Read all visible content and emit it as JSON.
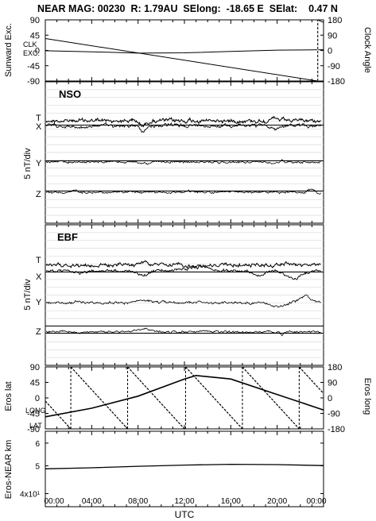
{
  "title": "NEAR MAG: 00230  R: 1.79AU  SElong:  -18.65 E  SElat:    0.47 N",
  "xaxis": {
    "label": "UTC",
    "ticks": [
      "00:00",
      "04:00",
      "08:00",
      "12:00",
      "16:00",
      "20:00",
      "00:00"
    ],
    "range_hours": [
      0,
      24
    ]
  },
  "chart_data": [
    {
      "type": "line",
      "id": "orientation",
      "ylabel_left": "Sunward Exc.",
      "ylabel_right": "Clock Angle",
      "left_ticks": [
        "90",
        "45",
        "0",
        "-45",
        "-90"
      ],
      "left_range": [
        -90,
        90
      ],
      "right_ticks": [
        "180",
        "90",
        "0",
        "-90",
        "-180"
      ],
      "right_range": [
        -180,
        180
      ],
      "annotations": [
        "CLK",
        "EXC."
      ],
      "series": [
        {
          "name": "CLK",
          "axis": "right",
          "x": [
            0,
            23.5,
            23.5,
            24
          ],
          "y": [
            70,
            -180,
            180,
            165
          ]
        },
        {
          "name": "EXC.",
          "axis": "left",
          "x": [
            0,
            4,
            8,
            12,
            16,
            20,
            24
          ],
          "y": [
            -1,
            -4,
            -8,
            -7,
            -3,
            1,
            2
          ]
        }
      ],
      "grid": false
    },
    {
      "type": "line",
      "id": "nso",
      "label": "NSO",
      "ylabel": "5 nT/div",
      "component_labels": [
        "T",
        "X",
        "Y",
        "Z"
      ],
      "grid": true
    },
    {
      "type": "line",
      "id": "ebf",
      "label": "EBF",
      "ylabel": "5 nT/div",
      "component_labels": [
        "T",
        "X",
        "Y",
        "Z"
      ],
      "grid": true
    },
    {
      "type": "line",
      "id": "eros_position",
      "ylabel_left": "Eros lat",
      "ylabel_right": "Eros long",
      "left_ticks": [
        "90",
        "45",
        "0",
        "-45",
        "-90"
      ],
      "left_range": [
        -90,
        90
      ],
      "right_ticks": [
        "180",
        "90",
        "0",
        "-90",
        "-180"
      ],
      "right_range": [
        -180,
        180
      ],
      "annotations": [
        "LONG",
        "LAT"
      ],
      "series": [
        {
          "name": "LAT",
          "axis": "left",
          "x": [
            0,
            4,
            8,
            12,
            13,
            16,
            20,
            24
          ],
          "y": [
            -55,
            -30,
            5,
            55,
            65,
            55,
            10,
            -35
          ]
        },
        {
          "name": "LONG",
          "axis": "right",
          "sawtooth_reset_hours": [
            2.2,
            7.1,
            12.1,
            17.0,
            21.9
          ],
          "period_hours": 4.9,
          "top": 180,
          "bottom": -180
        }
      ],
      "grid": false
    },
    {
      "type": "line",
      "id": "range",
      "ylabel": "Eros-NEAR km",
      "scale": "log",
      "ytick_labels": [
        "6",
        "5",
        "4x10¹"
      ],
      "ytick_values": [
        60,
        50,
        40
      ],
      "ylim": [
        36,
        66
      ],
      "series": [
        {
          "name": "Eros-NEAR km",
          "x": [
            0,
            4,
            8,
            12,
            16,
            20,
            24
          ],
          "y": [
            48.8,
            49.2,
            49.8,
            50.3,
            50.6,
            50.5,
            50.1
          ]
        }
      ],
      "grid": false
    }
  ]
}
